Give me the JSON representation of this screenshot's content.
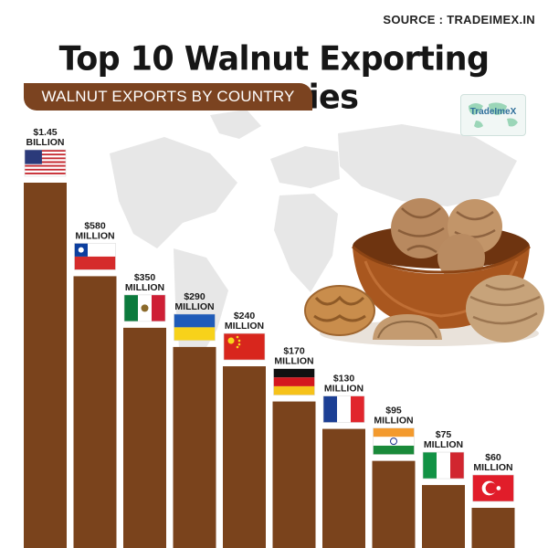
{
  "header": {
    "source": "SOURCE : TRADEIMEX.IN",
    "title": "Top 10 Walnut Exporting Countries",
    "subtitle": "WALNUT EXPORTS BY COUNTRY",
    "logo_text": "TradeImeX"
  },
  "colors": {
    "bar": "#7a431c",
    "subtitle_bg": "#7b4320",
    "map": "#e7e7e7",
    "title": "#161616"
  },
  "chart_data": {
    "type": "bar",
    "title": "Top 10 Walnut Exporting Countries",
    "subtitle": "WALNUT EXPORTS BY COUNTRY",
    "unit": "USD",
    "categories": [
      "United States",
      "Chile",
      "Mexico",
      "Ukraine",
      "China",
      "Germany",
      "France",
      "India",
      "Italy",
      "Turkey"
    ],
    "values": [
      1450,
      580,
      350,
      290,
      240,
      170,
      130,
      95,
      75,
      60
    ],
    "value_unit": "million USD",
    "labels": [
      [
        "$1.45",
        "BILLION"
      ],
      [
        "$580",
        "MILLION"
      ],
      [
        "$350",
        "MILLION"
      ],
      [
        "$290",
        "MILLION"
      ],
      [
        "$240",
        "MILLION"
      ],
      [
        "$170",
        "MILLION"
      ],
      [
        "$130",
        "MILLION"
      ],
      [
        "$95",
        "MILLION"
      ],
      [
        "$75",
        "MILLION"
      ],
      [
        "$60",
        "MILLION"
      ]
    ],
    "flags": [
      "us-flag",
      "chile-flag",
      "mexico-flag",
      "ukraine-flag",
      "china-flag",
      "germany-flag",
      "france-flag",
      "india-flag",
      "italy-flag",
      "turkey-flag"
    ],
    "grid": false,
    "legend": "none",
    "xlabel": "",
    "ylabel": ""
  },
  "decor": {
    "background": "world-map",
    "illustration": "walnut-bowl-illustration"
  }
}
